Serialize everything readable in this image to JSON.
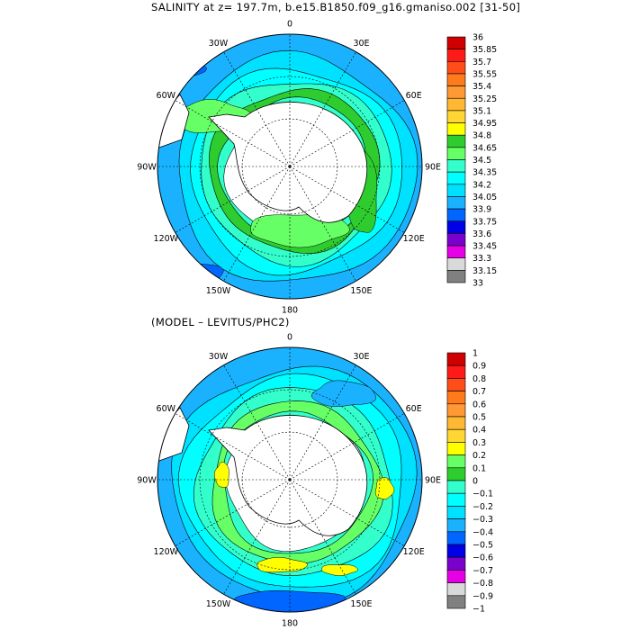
{
  "title": "SALINITY at z= 197.7m, b.e15.B1850.f09_g16.gmaniso.002 [31-50]",
  "subtitle": "(MODEL – LEVITUS/PHC2)",
  "lon_labels": [
    "0",
    "30E",
    "60E",
    "90E",
    "120E",
    "150E",
    "180",
    "150W",
    "120W",
    "90W",
    "60W",
    "30W"
  ],
  "panels": [
    {
      "id": "salinity",
      "colorbar": {
        "labels": [
          "36",
          "35.85",
          "35.7",
          "35.55",
          "35.4",
          "35.25",
          "35.1",
          "34.95",
          "34.8",
          "34.65",
          "34.5",
          "34.35",
          "34.2",
          "34.05",
          "33.9",
          "33.75",
          "33.6",
          "33.45",
          "33.3",
          "33.15",
          "33"
        ],
        "colors": [
          "#d00000",
          "#ff1a1a",
          "#ff4d1a",
          "#ff7a1a",
          "#ff9933",
          "#ffb833",
          "#ffd633",
          "#ffff00",
          "#2ecc2e",
          "#66ff66",
          "#33ffcc",
          "#00ffff",
          "#00e0ff",
          "#1ab2ff",
          "#0066ff",
          "#0000e6",
          "#7a00cc",
          "#e600e6",
          "#d9d9d9",
          "#808080"
        ]
      }
    },
    {
      "id": "difference",
      "colorbar": {
        "labels": [
          "1",
          "0.9",
          "0.8",
          "0.7",
          "0.6",
          "0.5",
          "0.4",
          "0.3",
          "0.2",
          "0.1",
          "0",
          "−0.1",
          "−0.2",
          "−0.3",
          "−0.4",
          "−0.5",
          "−0.6",
          "−0.7",
          "−0.8",
          "−0.9",
          "−1"
        ],
        "colors": [
          "#d00000",
          "#ff1a1a",
          "#ff4d1a",
          "#ff7a1a",
          "#ff9933",
          "#ffb833",
          "#ffd633",
          "#ffff00",
          "#66ff66",
          "#2ecc2e",
          "#33ffcc",
          "#00ffff",
          "#00e0ff",
          "#1ab2ff",
          "#0066ff",
          "#0000e6",
          "#7a00cc",
          "#e600e6",
          "#d9d9d9",
          "#808080"
        ]
      }
    }
  ]
}
